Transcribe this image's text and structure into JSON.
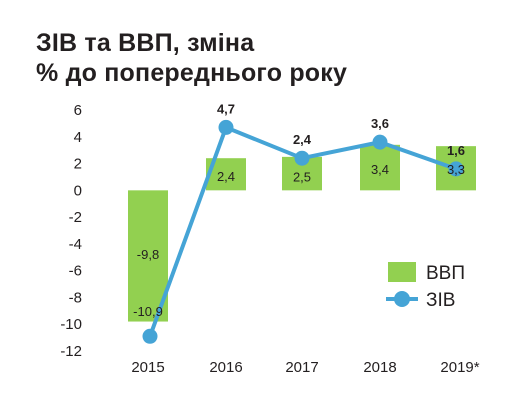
{
  "chart_data": {
    "type": "bar",
    "title": "ЗІВ та ВВП, зміна",
    "subtitle": "% до попереднього року",
    "categories": [
      "2015",
      "2016",
      "2017",
      "2018",
      "2019*"
    ],
    "series": [
      {
        "name": "ВВП",
        "type": "bar",
        "color": "#92d050",
        "values": [
          -9.8,
          2.4,
          2.5,
          3.4,
          3.3
        ],
        "labels": [
          "-9,8",
          "2,4",
          "2,5",
          "3,4",
          "3,3"
        ]
      },
      {
        "name": "ЗІВ",
        "type": "line",
        "color": "#45a4d6",
        "values": [
          -10.9,
          4.7,
          2.4,
          3.6,
          1.6
        ],
        "labels": [
          "-10,9",
          "4,7",
          "2,4",
          "3,6",
          "1,6"
        ]
      }
    ],
    "ylim": [
      -12,
      6
    ],
    "yticks": [
      6,
      4,
      2,
      0,
      -2,
      -4,
      -6,
      -8,
      -10,
      -12
    ],
    "xlabel": "",
    "ylabel": "",
    "grid": false,
    "legend_position": "right"
  }
}
